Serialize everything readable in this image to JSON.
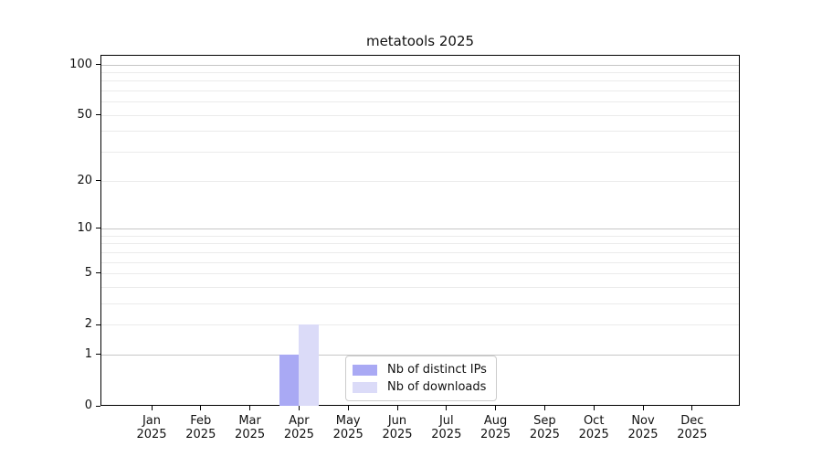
{
  "chart_data": {
    "type": "bar",
    "title": "metatools 2025",
    "categories": [
      "Jan 2025",
      "Feb 2025",
      "Mar 2025",
      "Apr 2025",
      "May 2025",
      "Jun 2025",
      "Jul 2025",
      "Aug 2025",
      "Sep 2025",
      "Oct 2025",
      "Nov 2025",
      "Dec 2025"
    ],
    "series": [
      {
        "name": "Nb of distinct IPs",
        "color": "#a9a9f4",
        "values": [
          0,
          0,
          0,
          1,
          0,
          0,
          0,
          0,
          0,
          0,
          0,
          0
        ]
      },
      {
        "name": "Nb of downloads",
        "color": "#dbdbf8",
        "values": [
          0,
          0,
          0,
          2,
          0,
          0,
          0,
          0,
          0,
          0,
          0,
          0
        ]
      }
    ],
    "xlabel": "",
    "ylabel": "",
    "yscale": "log1p",
    "ylim": [
      0,
      114
    ],
    "yticks": [
      0,
      1,
      2,
      5,
      10,
      20,
      50,
      100
    ],
    "y_major_gridlines": [
      1,
      10,
      100
    ],
    "y_minor_gridlines": [
      3,
      4,
      6,
      7,
      8,
      9,
      30,
      40,
      60,
      70,
      80,
      90
    ],
    "grid": "horizontal only",
    "legend_position": "lower center inside"
  },
  "colors": {
    "major_grid": "#c6c6c6",
    "minor_grid": "#ebebeb",
    "axis": "#000000",
    "text": "#111111",
    "legend_border": "#cccccc"
  }
}
